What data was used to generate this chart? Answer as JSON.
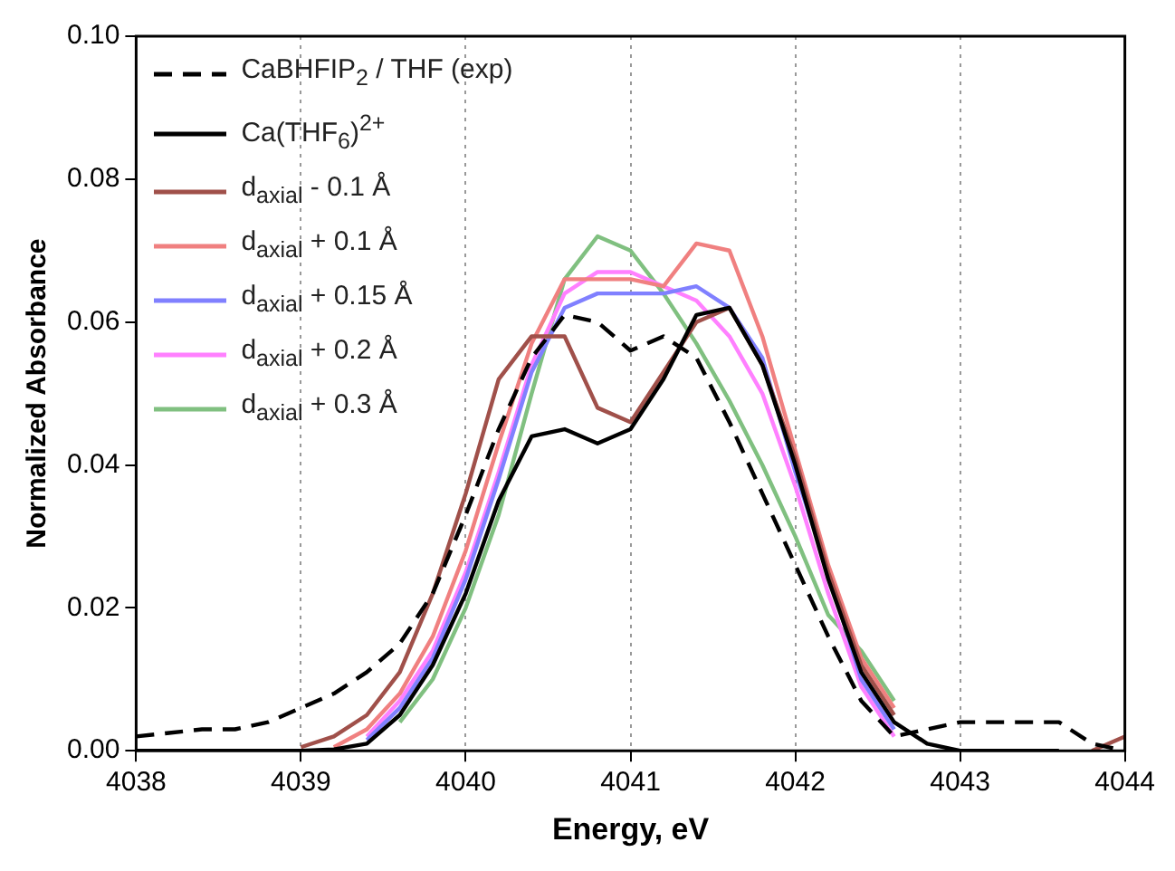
{
  "chart_data": {
    "type": "line",
    "xlabel": "Energy, eV",
    "ylabel": "Normalized Absorbance",
    "x": [
      4038,
      4038.2,
      4038.4,
      4038.6,
      4038.8,
      4039,
      4039.2,
      4039.4,
      4039.6,
      4039.8,
      4040,
      4040.2,
      4040.4,
      4040.6,
      4040.8,
      4041,
      4041.2,
      4041.4,
      4041.6,
      4041.8,
      4042,
      4042.2,
      4042.4,
      4042.6,
      4042.8,
      4043,
      4043.2,
      4043.4,
      4043.6,
      4043.8,
      4044
    ],
    "xlim": [
      4038,
      4044
    ],
    "xticks": [
      4038,
      4039,
      4040,
      4041,
      4042,
      4043,
      4044
    ],
    "ylim": [
      0,
      0.1
    ],
    "yticks": [
      {
        "value": 0,
        "label": "0.00"
      },
      {
        "value": 0.02,
        "label": "0.02"
      },
      {
        "value": 0.04,
        "label": "0.04"
      },
      {
        "value": 0.06,
        "label": "0.06"
      },
      {
        "value": 0.08,
        "label": "0.08"
      },
      {
        "value": 0.1,
        "label": "0.10"
      }
    ],
    "grid": "x",
    "legend": "top left",
    "marker": "none",
    "series": [
      {
        "name": "CaBHFIP$_{2}$ / THF (exp)",
        "color": "#000000",
        "line_style": "dashed",
        "values": [
          0.002,
          0.0025,
          0.003,
          0.003,
          0.004,
          0.006,
          0.008,
          0.011,
          0.015,
          0.022,
          0.033,
          0.045,
          0.055,
          0.061,
          0.06,
          0.056,
          0.058,
          0.055,
          0.046,
          0.036,
          0.026,
          0.016,
          0.007,
          0.002,
          0.003,
          0.004,
          0.004,
          0.004,
          0.004,
          0.001,
          0
        ]
      },
      {
        "name": "Ca(THF$_{6}$)$^{2+}$",
        "color": "#000000",
        "line_style": "solid",
        "values": [
          0,
          0,
          0,
          0,
          0,
          0,
          0.0002,
          0.001,
          0.005,
          0.012,
          0.022,
          0.035,
          0.044,
          0.045,
          0.043,
          0.045,
          0.052,
          0.061,
          0.062,
          0.054,
          0.04,
          0.024,
          0.011,
          0.004,
          0.001,
          0,
          0,
          0,
          0,
          null,
          null
        ]
      },
      {
        "name": "d$_{axial}$ - 0.1 Å",
        "color": "#a0504a",
        "line_style": "solid",
        "values": [
          null,
          null,
          null,
          null,
          null,
          0.0005,
          0.002,
          0.005,
          0.011,
          0.022,
          0.036,
          0.052,
          0.058,
          0.058,
          0.048,
          0.046,
          0.053,
          0.06,
          0.062,
          0.054,
          0.041,
          0.025,
          0.012,
          0.005,
          null,
          null,
          null,
          null,
          null,
          0,
          0.002
        ]
      },
      {
        "name": "d$_{axial}$ + 0.1 Å",
        "color": "#f08080",
        "line_style": "solid",
        "values": [
          null,
          null,
          null,
          null,
          null,
          null,
          0.0005,
          0.003,
          0.008,
          0.016,
          0.028,
          0.043,
          0.057,
          0.066,
          0.066,
          0.066,
          0.065,
          0.071,
          0.07,
          0.058,
          0.042,
          0.026,
          0.013,
          0.006,
          null,
          null,
          null,
          null,
          null,
          null,
          null
        ]
      },
      {
        "name": "d$_{axial}$ + 0.15 Å",
        "color": "#8080ff",
        "line_style": "solid",
        "values": [
          null,
          null,
          null,
          null,
          null,
          null,
          null,
          0.0015,
          0.006,
          0.013,
          0.024,
          0.038,
          0.053,
          0.062,
          0.064,
          0.064,
          0.064,
          0.065,
          0.062,
          0.055,
          0.039,
          0.025,
          0.01,
          0.003,
          null,
          null,
          null,
          null,
          null,
          null,
          null
        ]
      },
      {
        "name": "d$_{axial}$ + 0.2 Å",
        "color": "#ff80ff",
        "line_style": "solid",
        "values": [
          null,
          null,
          null,
          null,
          null,
          null,
          null,
          0.002,
          0.007,
          0.014,
          0.025,
          0.039,
          0.054,
          0.064,
          0.067,
          0.067,
          0.065,
          0.063,
          0.058,
          0.05,
          0.037,
          0.022,
          0.009,
          0.002,
          null,
          null,
          null,
          null,
          null,
          null,
          null
        ]
      },
      {
        "name": "d$_{axial}$ + 0.3 Å",
        "color": "#80c080",
        "line_style": "solid",
        "values": [
          null,
          null,
          null,
          null,
          null,
          null,
          null,
          null,
          0.004,
          0.01,
          0.02,
          0.033,
          0.05,
          0.066,
          0.072,
          0.07,
          0.064,
          0.057,
          0.049,
          0.04,
          0.03,
          0.019,
          0.014,
          0.007,
          null,
          null,
          null,
          null,
          null,
          null,
          null
        ]
      }
    ]
  }
}
